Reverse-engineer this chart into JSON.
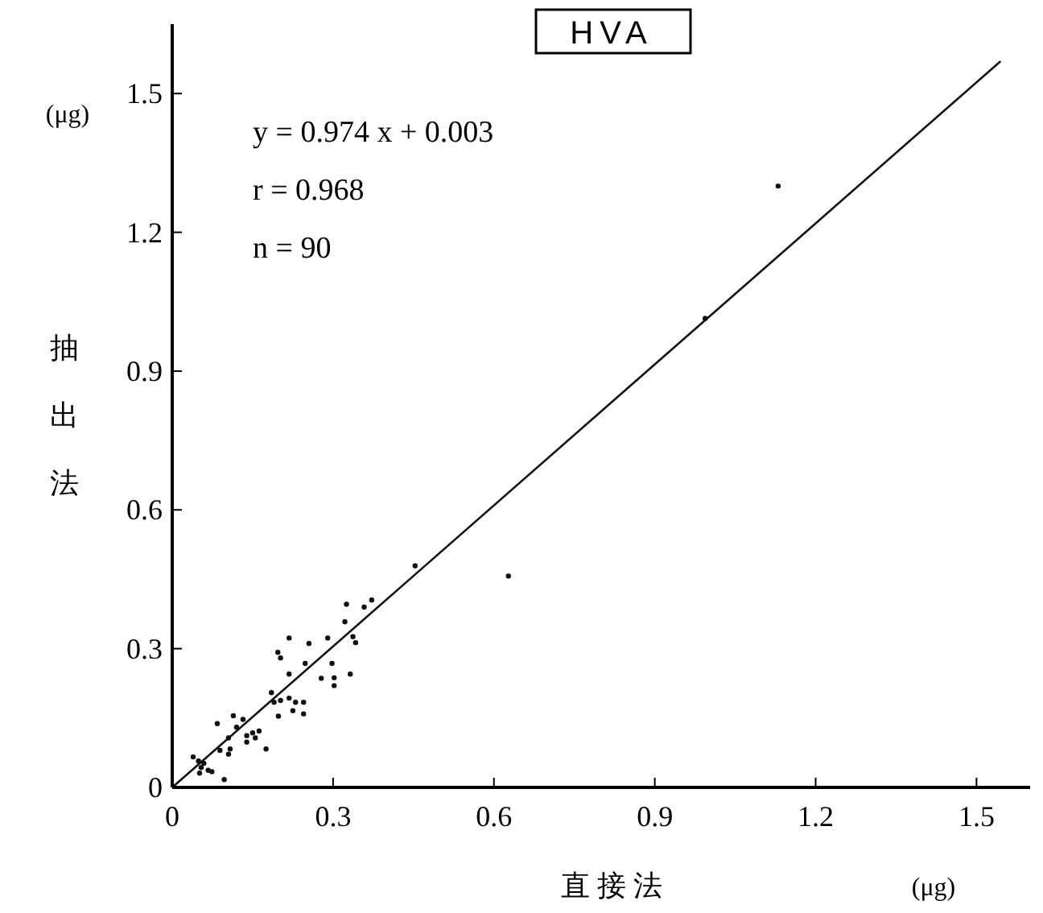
{
  "chart_data": {
    "type": "scatter",
    "title": "HVA",
    "xlabel": "直 接 法",
    "ylabel": "抽出法",
    "annotations": [
      "(μg)",
      "(μg)",
      "y = 0.974 x + 0.003",
      "r = 0.968",
      "n = 90"
    ],
    "xlim": [
      0,
      1.6
    ],
    "ylim": [
      0,
      1.65
    ],
    "xticks": [
      0,
      0.3,
      0.6,
      0.9,
      1.2,
      1.5
    ],
    "yticks": [
      0,
      0.3,
      0.6,
      0.9,
      1.2,
      1.5
    ],
    "grid": false,
    "series": [
      {
        "color": "#111111",
        "marker": "circle",
        "x": [
          0.453,
          0.325,
          0.358,
          0.372,
          0.322,
          0.337,
          0.342,
          0.29,
          0.255,
          0.218,
          0.197,
          0.202,
          0.248,
          0.298,
          0.218,
          0.332,
          0.278,
          0.302,
          0.302,
          0.185,
          0.19,
          0.202,
          0.218,
          0.23,
          0.245,
          0.225,
          0.245,
          0.198,
          0.114,
          0.084,
          0.132,
          0.12,
          0.15,
          0.162,
          0.139,
          0.155,
          0.105,
          0.089,
          0.108,
          0.105,
          0.175,
          0.139,
          0.039,
          0.049,
          0.059,
          0.067,
          0.054,
          0.074,
          0.051,
          0.097,
          0.627,
          0.994,
          1.13
        ],
        "values": [
          0.479,
          0.396,
          0.39,
          0.405,
          0.358,
          0.326,
          0.313,
          0.323,
          0.311,
          0.323,
          0.292,
          0.28,
          0.268,
          0.268,
          0.245,
          0.245,
          0.236,
          0.237,
          0.22,
          0.205,
          0.184,
          0.188,
          0.193,
          0.184,
          0.184,
          0.166,
          0.159,
          0.154,
          0.155,
          0.138,
          0.147,
          0.13,
          0.118,
          0.122,
          0.112,
          0.107,
          0.107,
          0.08,
          0.083,
          0.072,
          0.083,
          0.098,
          0.066,
          0.057,
          0.052,
          0.037,
          0.043,
          0.034,
          0.031,
          0.017,
          0.457,
          1.014,
          1.3
        ]
      },
      {
        "type": "line",
        "color": "#111111",
        "line_style": "solid",
        "x": [
          0,
          1.545
        ],
        "values": [
          0,
          1.57
        ]
      }
    ]
  }
}
